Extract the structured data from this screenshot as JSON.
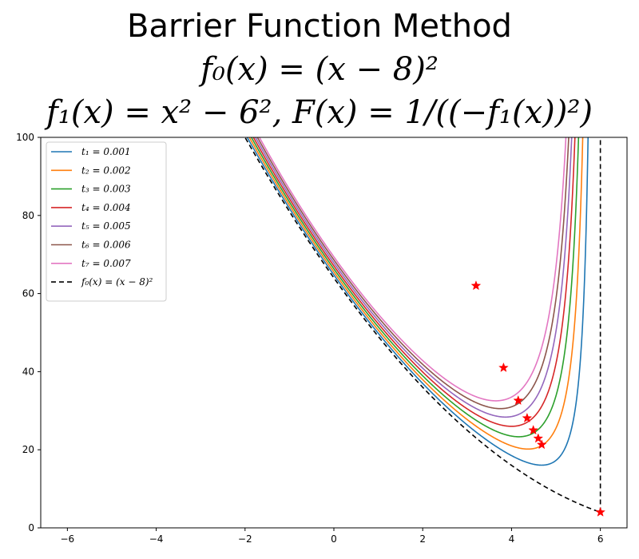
{
  "chart_data": {
    "type": "line",
    "title": "Barrier Function Method",
    "title_lines": [
      "Barrier Function Method",
      "f₀(x) = (x − 8)²",
      "f₁(x) = x² − 6², F(x) = 1/((−f₁(x))²)"
    ],
    "xlim": [
      -6.6,
      6.6
    ],
    "ylim": [
      0,
      100
    ],
    "xticks": [
      -6,
      -4,
      -2,
      0,
      2,
      4,
      6
    ],
    "yticks": [
      0,
      20,
      40,
      60,
      80,
      100
    ],
    "grid": false,
    "legend_position": "upper-left",
    "series": [
      {
        "name": "t₁ = 0.001",
        "t": 0.001,
        "color": "#1f77b4",
        "minimum": {
          "x": 3.2,
          "y": 62.0
        }
      },
      {
        "name": "t₂ = 0.002",
        "t": 0.002,
        "color": "#ff7f0e",
        "minimum": {
          "x": 3.82,
          "y": 41.0
        }
      },
      {
        "name": "t₃ = 0.003",
        "t": 0.003,
        "color": "#2ca02c",
        "minimum": {
          "x": 4.15,
          "y": 32.6
        }
      },
      {
        "name": "t₄ = 0.004",
        "t": 0.004,
        "color": "#d62728",
        "minimum": {
          "x": 4.35,
          "y": 28.1
        }
      },
      {
        "name": "t₅ = 0.005",
        "t": 0.005,
        "color": "#9467bd",
        "minimum": {
          "x": 4.49,
          "y": 25.0
        }
      },
      {
        "name": "t₆ = 0.006",
        "t": 0.006,
        "color": "#8c564b",
        "minimum": {
          "x": 4.6,
          "y": 22.9
        }
      },
      {
        "name": "t₇ = 0.007",
        "t": 0.007,
        "color": "#e377c2",
        "minimum": {
          "x": 4.68,
          "y": 21.3
        }
      }
    ],
    "objective": {
      "name": "f₀(x) = (x − 8)²",
      "color": "#000000",
      "style": "dashed",
      "minimum": {
        "x": 6.0,
        "y": 4.0
      }
    },
    "marker_color": "#ff0000"
  }
}
